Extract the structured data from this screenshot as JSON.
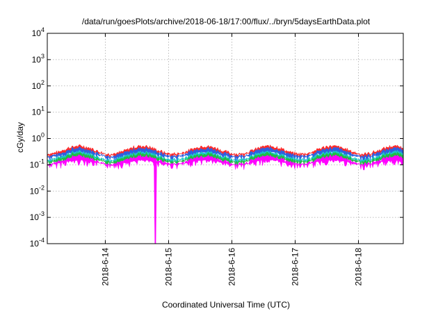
{
  "chart_data": {
    "type": "area",
    "title": "/data/run/goesPlots/archive/2018-06-18/17:00/flux/../bryn/5daysEarthData.plot",
    "xlabel": "Coordinated Universal Time (UTC)",
    "ylabel": "cGy/day",
    "yscale": "log",
    "ylim": [
      0.0001,
      10000
    ],
    "y_ticks": [
      {
        "value": 10000,
        "base": "10",
        "exp": "4"
      },
      {
        "value": 1000,
        "base": "10",
        "exp": "3"
      },
      {
        "value": 100,
        "base": "10",
        "exp": "2"
      },
      {
        "value": 10,
        "base": "10",
        "exp": "1"
      },
      {
        "value": 1,
        "base": "10",
        "exp": "0"
      },
      {
        "value": 0.1,
        "base": "10",
        "exp": "-1"
      },
      {
        "value": 0.01,
        "base": "10",
        "exp": "-2"
      },
      {
        "value": 0.001,
        "base": "10",
        "exp": "-3"
      },
      {
        "value": 0.0001,
        "base": "10",
        "exp": "-4"
      }
    ],
    "xlim": [
      "2018-06-13T02:00",
      "2018-06-18T17:00"
    ],
    "x_ticks": [
      {
        "value": "2018-06-14T00:00",
        "label": "2018-6-14"
      },
      {
        "value": "2018-06-15T00:00",
        "label": "2018-6-15"
      },
      {
        "value": "2018-06-16T00:00",
        "label": "2018-6-16"
      },
      {
        "value": "2018-06-17T00:00",
        "label": "2018-6-17"
      },
      {
        "value": "2018-06-18T00:00",
        "label": "2018-6-18"
      }
    ],
    "grid": true,
    "series": [
      {
        "color": "#ff2a2a",
        "typical_value": 0.36
      },
      {
        "color": "#2f5fe0",
        "typical_value": 0.3
      },
      {
        "color": "#19c8c8",
        "typical_value": 0.22
      },
      {
        "color": "#22bb44",
        "typical_value": 0.19
      },
      {
        "color": "#ff00ff",
        "typical_value": 0.15,
        "dropout": {
          "time": "2018-06-14T19:00",
          "value": 0.0001
        }
      }
    ]
  }
}
